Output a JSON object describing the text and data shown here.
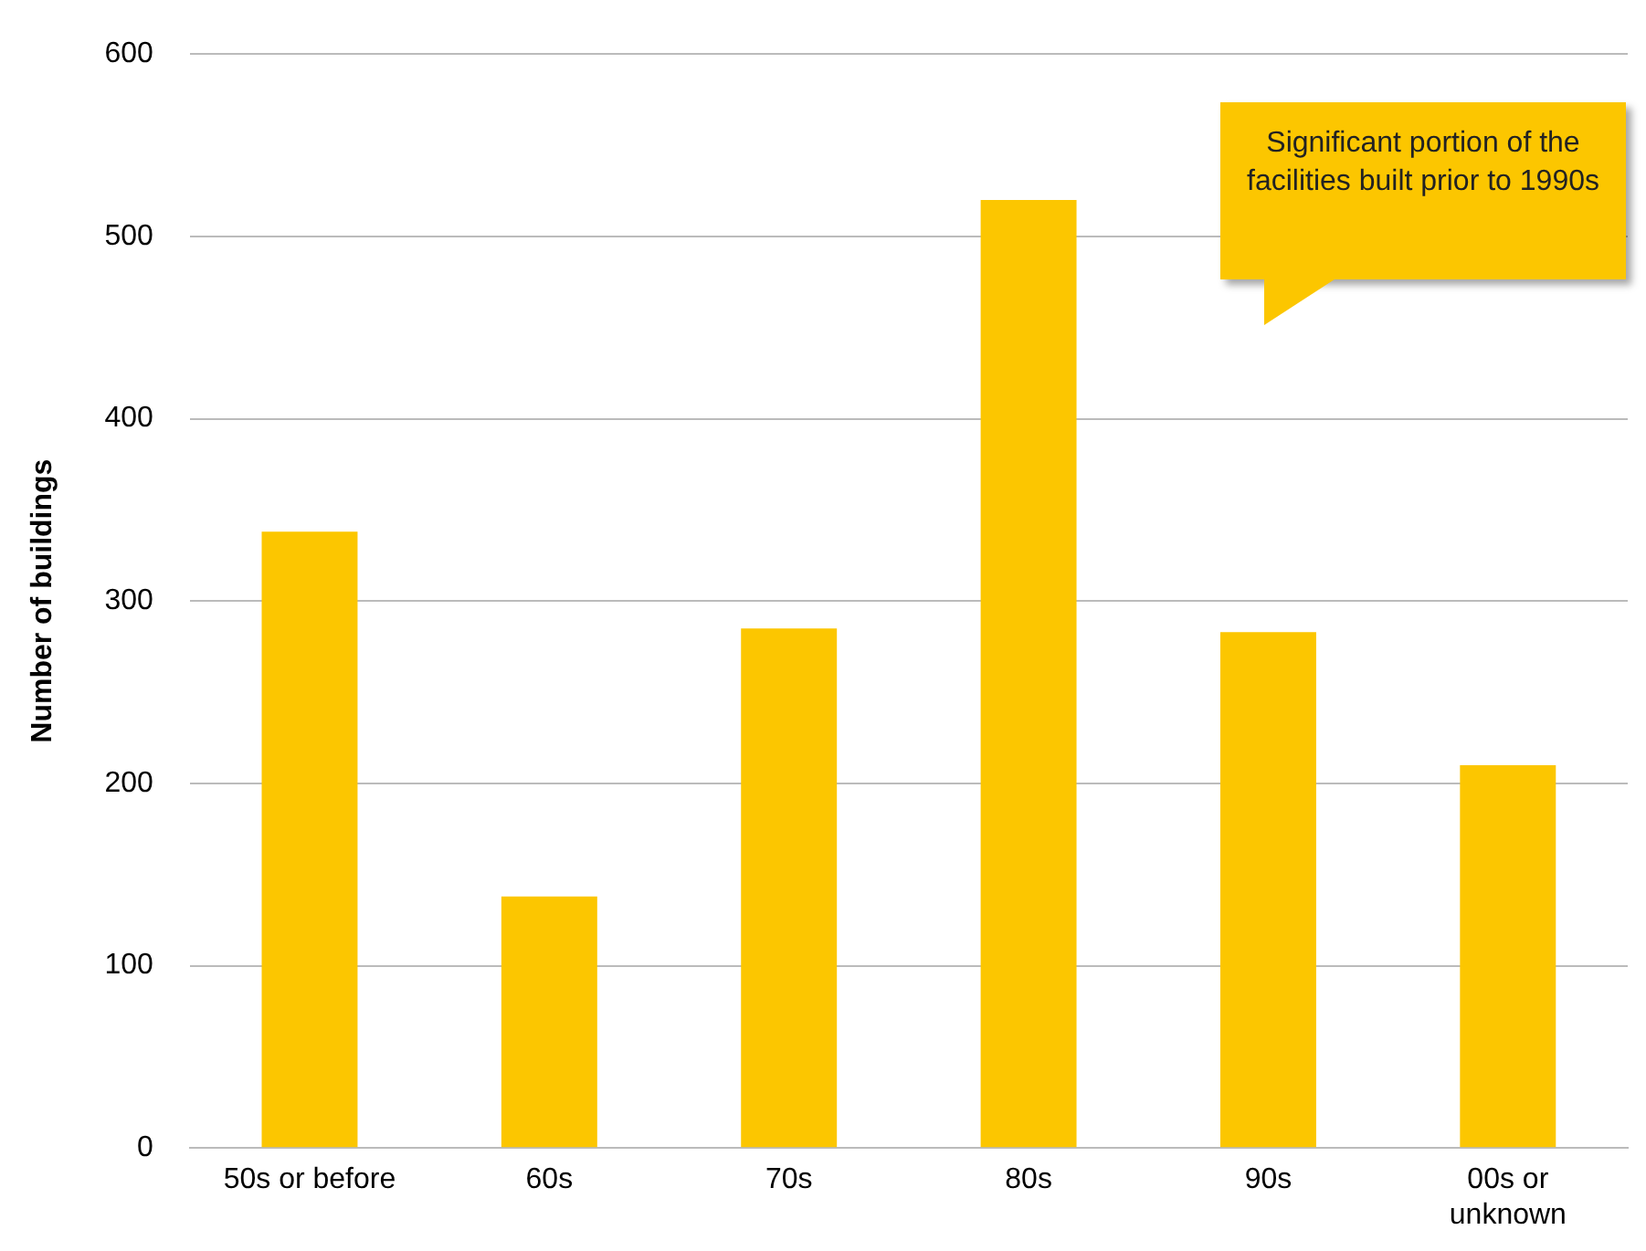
{
  "chart_data": {
    "type": "bar",
    "ylabel": "Number of buildings",
    "categories": [
      "50s or before",
      "60s",
      "70s",
      "80s",
      "90s",
      "00s or\nunknown"
    ],
    "values": [
      338,
      138,
      285,
      520,
      283,
      210
    ],
    "color": "#fcc600",
    "ylim": [
      0,
      600
    ],
    "yticks": [
      0,
      100,
      200,
      300,
      400,
      500,
      600
    ],
    "grid": "y",
    "annotations": [
      "Significant portion of the facilities built prior to 1990s"
    ]
  }
}
